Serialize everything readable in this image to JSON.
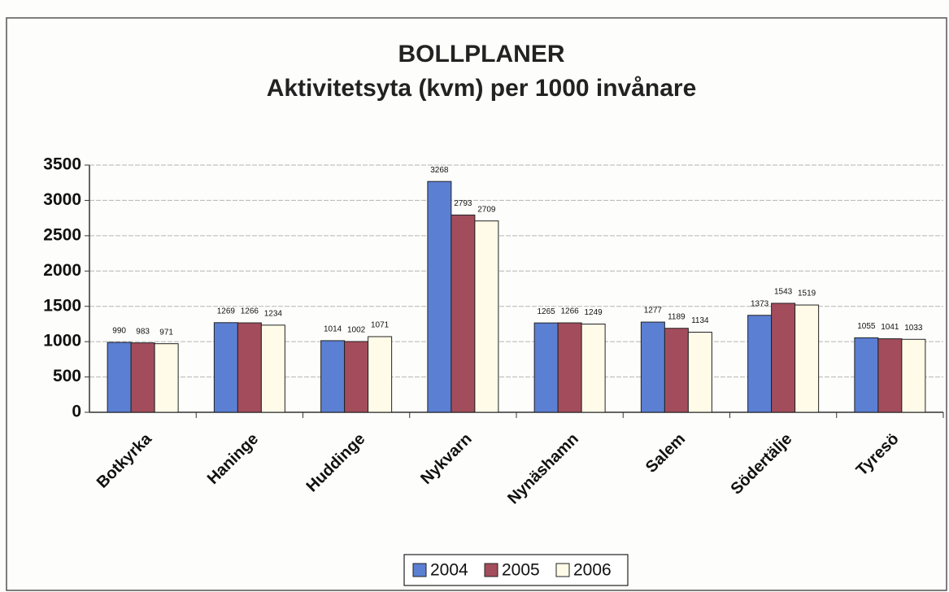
{
  "chart_data": {
    "type": "bar",
    "title": "BOLLPLANER",
    "subtitle": "Aktivitetsyta (kvm) per 1000 invånare",
    "categories": [
      "Botkyrka",
      "Haninge",
      "Huddinge",
      "Nykvarn",
      "Nynäshamn",
      "Salem",
      "Södertälje",
      "Tyresö"
    ],
    "series": [
      {
        "name": "2004",
        "color": "#5b7fd2",
        "values": [
          990,
          1269,
          1014,
          3268,
          1265,
          1277,
          1373,
          1055
        ]
      },
      {
        "name": "2005",
        "color": "#a34d5c",
        "values": [
          983,
          1266,
          1002,
          2793,
          1266,
          1189,
          1543,
          1041
        ]
      },
      {
        "name": "2006",
        "color": "#fffbe8",
        "values": [
          971,
          1234,
          1071,
          2709,
          1249,
          1134,
          1519,
          1033
        ]
      }
    ],
    "ylim": [
      0,
      3500
    ],
    "yticks": [
      0,
      500,
      1000,
      1500,
      2000,
      2500,
      3000,
      3500
    ],
    "grid": true,
    "legend": "bottom"
  }
}
